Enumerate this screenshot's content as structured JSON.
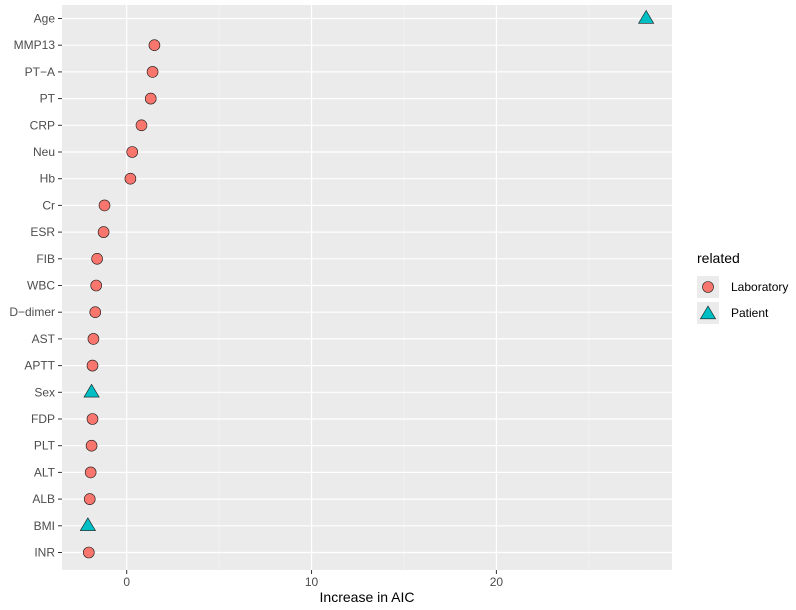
{
  "chart_data": {
    "type": "scatter",
    "xlabel": "Increase in AIC",
    "ylabel": "",
    "xlim": [
      -3.5,
      29.5
    ],
    "x_ticks": [
      "0",
      "10",
      "20"
    ],
    "grid": true,
    "legend": {
      "title": "related",
      "placement": "right",
      "entries": [
        {
          "label": "Laboratory",
          "color": "#F8766D",
          "shape": "circle"
        },
        {
          "label": "Patient",
          "color": "#00BFC4",
          "shape": "triangle"
        }
      ]
    },
    "categories": [
      "Age",
      "MMP13",
      "PT−A",
      "PT",
      "CRP",
      "Neu",
      "Hb",
      "Cr",
      "ESR",
      "FIB",
      "WBC",
      "D−dimer",
      "AST",
      "APTT",
      "Sex",
      "FDP",
      "PLT",
      "ALT",
      "ALB",
      "BMI",
      "INR"
    ],
    "series": [
      {
        "name": "Laboratory",
        "color": "#F8766D",
        "shape": "circle",
        "points": [
          {
            "category": "MMP13",
            "x": 1.5
          },
          {
            "category": "PT−A",
            "x": 1.4
          },
          {
            "category": "PT",
            "x": 1.3
          },
          {
            "category": "CRP",
            "x": 0.8
          },
          {
            "category": "Neu",
            "x": 0.3
          },
          {
            "category": "Hb",
            "x": 0.2
          },
          {
            "category": "Cr",
            "x": -1.2
          },
          {
            "category": "ESR",
            "x": -1.25
          },
          {
            "category": "FIB",
            "x": -1.6
          },
          {
            "category": "WBC",
            "x": -1.65
          },
          {
            "category": "D−dimer",
            "x": -1.7
          },
          {
            "category": "AST",
            "x": -1.8
          },
          {
            "category": "APTT",
            "x": -1.85
          },
          {
            "category": "FDP",
            "x": -1.85
          },
          {
            "category": "PLT",
            "x": -1.9
          },
          {
            "category": "ALT",
            "x": -1.95
          },
          {
            "category": "ALB",
            "x": -2.0
          },
          {
            "category": "INR",
            "x": -2.05
          }
        ]
      },
      {
        "name": "Patient",
        "color": "#00BFC4",
        "shape": "triangle",
        "points": [
          {
            "category": "Age",
            "x": 28.1
          },
          {
            "category": "Sex",
            "x": -1.9
          },
          {
            "category": "BMI",
            "x": -2.1
          }
        ]
      }
    ]
  }
}
